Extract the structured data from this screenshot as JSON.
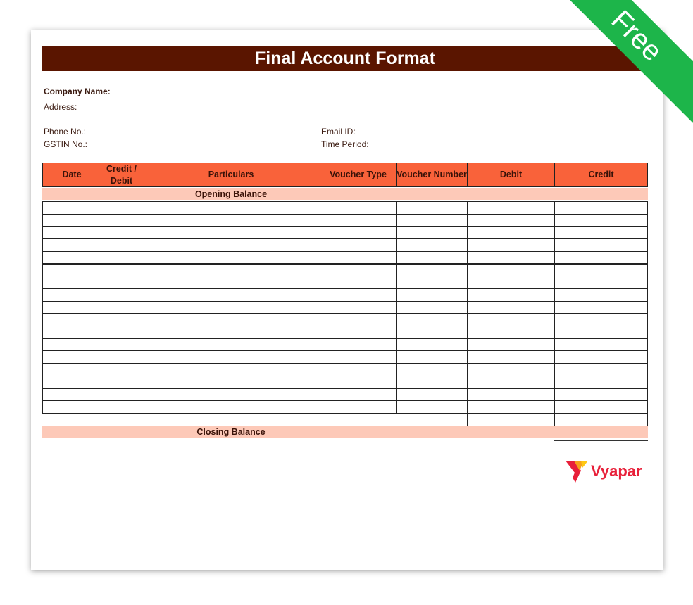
{
  "title": "Final Account Format",
  "ribbon": "Free",
  "info": {
    "company": "Company Name:",
    "address": "Address:",
    "phone": "Phone No.:",
    "gstin": "GSTIN No.:",
    "email": "Email ID:",
    "period": "Time Period:"
  },
  "table": {
    "headers": [
      "Date",
      "Credit / Debit",
      "Particulars",
      "Voucher Type",
      "Voucher Number",
      "Debit",
      "Credit"
    ],
    "opening": "Opening Balance",
    "closing": "Closing Balance"
  },
  "logo": {
    "text": "Vyapar",
    "colors": [
      "#e8203a",
      "#f7a11a",
      "#ffc814"
    ]
  }
}
